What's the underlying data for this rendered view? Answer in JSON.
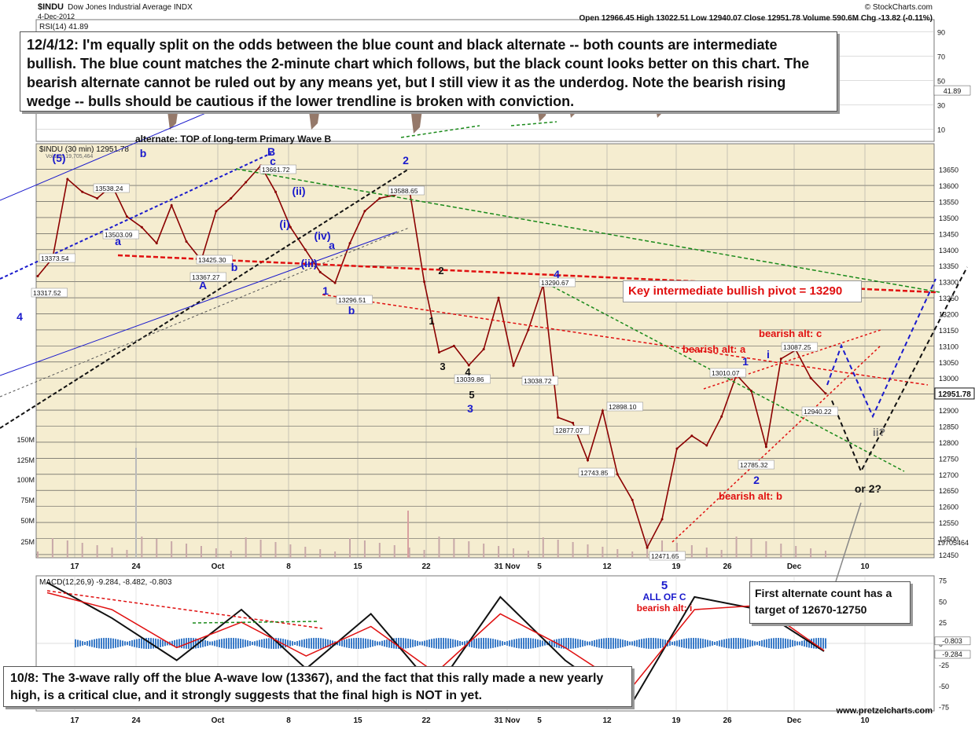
{
  "header": {
    "symbol": "$INDU",
    "name": "Dow Jones Industrial Average INDX",
    "date": "4-Dec-2012",
    "quote": "Open 12966.45  High 13022.51  Low 12940.07  Close 12951.78  Volume 590.6M  Chg -13.82 (-0.11%)",
    "copyright": "© StockCharts.com"
  },
  "notes": {
    "main": "12/4/12: I'm equally split on the odds between the blue count and black alternate -- both counts are intermediate bullish.  The blue count matches the 2-minute chart which follows, but the black count looks better on this chart.  The bearish alternate cannot be ruled out by any means yet, but I still view it as the underdog.  Note the bearish rising wedge -- bulls should be cautious if the lower trendline is broken with conviction.",
    "bottom": "10/8:  The 3-wave rally off the blue A-wave low (13367), and the fact that this rally made a new yearly high, is a critical clue, and it strongly suggests that the final high is NOT in yet.",
    "target": "First alternate count has a target of 12670-12750",
    "pivot": "Key intermediate bullish pivot = 13290"
  },
  "footer": {
    "url": "www.pretzelcharts.com"
  },
  "colors": {
    "blue": "#1a1acc",
    "red": "#e01010",
    "green": "#1a8a1a",
    "black": "#111111",
    "pricebar": "#8b0000",
    "macd_hist": "#3a7bc8",
    "ppo_fill": "#8a6a5a",
    "bg_band": "#f5edd0"
  },
  "chart_data": [
    {
      "type": "line",
      "name": "price",
      "title": "$INDU (30 min) 12951.78",
      "legend": [
        "$INDU (30 min) 12951.78",
        "Volume 19,705,464"
      ],
      "x_labels": [
        "17",
        "24",
        "Oct",
        "8",
        "15",
        "22",
        "31 Nov",
        "5",
        "12",
        "19",
        "26",
        "Dec",
        "10"
      ],
      "ylim": [
        12440,
        13730
      ],
      "y_ticks": [
        12450,
        12500,
        12550,
        12600,
        12650,
        12700,
        12750,
        12800,
        12850,
        12900,
        12950,
        13000,
        13050,
        13100,
        13150,
        13200,
        13250,
        13300,
        13350,
        13400,
        13450,
        13500,
        13550,
        13600,
        13650
      ],
      "last_value": "12951.78",
      "last_volume": "19705464",
      "volume_axis": [
        "150M",
        "125M",
        "100M",
        "75M",
        "50M",
        "25M"
      ],
      "series": [
        {
          "name": "$INDU",
          "x": [
            "Sep 13",
            "Sep 14",
            "Sep 17",
            "Sep 18",
            "Sep 19",
            "Sep 21",
            "Sep 24",
            "Sep 25",
            "Sep 26",
            "Sep 27",
            "Sep 28",
            "Oct 1",
            "Oct 2",
            "Oct 3",
            "Oct 4",
            "Oct 5",
            "Oct 8",
            "Oct 9",
            "Oct 10",
            "Oct 11",
            "Oct 12",
            "Oct 15",
            "Oct 16",
            "Oct 17",
            "Oct 18",
            "Oct 19",
            "Oct 22",
            "Oct 23",
            "Oct 24",
            "Oct 25",
            "Oct 26",
            "Nov 1",
            "Nov 2",
            "Nov 5",
            "Nov 6",
            "Nov 7",
            "Nov 8",
            "Nov 9",
            "Nov 12",
            "Nov 13",
            "Nov 14",
            "Nov 15",
            "Nov 16",
            "Nov 19",
            "Nov 20",
            "Nov 21",
            "Nov 23",
            "Nov 26",
            "Nov 27",
            "Nov 28",
            "Nov 29",
            "Nov 30",
            "Dec 3",
            "Dec 4"
          ],
          "values": [
            13317.52,
            13373.54,
            13620,
            13580,
            13560,
            13600,
            13503.09,
            13470,
            13420,
            13538.24,
            13425.3,
            13367.27,
            13520,
            13560,
            13610,
            13661.72,
            13580,
            13470,
            13400,
            13330,
            13296.51,
            13420,
            13520,
            13560,
            13570,
            13588.65,
            13300,
            13080,
            13100,
            13039.86,
            13090,
            13250,
            13038.72,
            13150,
            13290.67,
            12877.07,
            12860,
            12743.85,
            12898.1,
            12700,
            12620,
            12471.65,
            12560,
            12780,
            12820,
            12790,
            12880,
            13010.07,
            12960,
            12785.32,
            13060,
            13087.25,
            13000,
            12951.78
          ]
        }
      ],
      "price_labels": [
        "13373.54",
        "13317.52",
        "13503.09",
        "13538.24",
        "13425.30",
        "13367.27",
        "13661.72",
        "13296.51",
        "13588.65",
        "13039.86",
        "13038.72",
        "13290.67",
        "12877.07",
        "12743.85",
        "12898.10",
        "12471.65",
        "13010.07",
        "12785.32",
        "13087.25",
        "12940.22"
      ],
      "wave_labels": {
        "blue": [
          "(5)",
          "a",
          "A",
          "B",
          "c",
          "(ii)",
          "(i)",
          "(iv)",
          "a",
          "(iii)",
          "1",
          "b",
          "2",
          "b",
          "4",
          "3",
          "4",
          "5",
          "1",
          "i",
          "2",
          "ii?",
          "ALL OF C"
        ],
        "black": [
          "2",
          "1",
          "4",
          "3",
          "5",
          "or 2?"
        ],
        "red": [
          "bearish alt: a",
          "bearish alt: c",
          "bearish alt: b",
          "bearish alt: i"
        ],
        "annotation": "alternate: TOP of long-term Primary Wave B"
      }
    },
    {
      "type": "line",
      "name": "RSI",
      "legend": "RSI(14) 41.89",
      "ylim": [
        0,
        100
      ],
      "y_ticks": [
        10,
        30,
        50,
        70,
        90
      ],
      "last_value": "41.89"
    },
    {
      "type": "line",
      "name": "MACD",
      "legend": "MACD(12,26,9) -9.284, -8.482, -0.803",
      "ylim": [
        -80,
        80
      ],
      "y_ticks": [
        75,
        50,
        25,
        0,
        -25,
        -50,
        -75
      ],
      "last_values": [
        "-0.803",
        "-9.284"
      ],
      "x": [
        "Sep 13",
        "Sep 21",
        "Sep 28",
        "Oct 5",
        "Oct 12",
        "Oct 19",
        "Oct 26",
        "Nov 5",
        "Nov 9",
        "Nov 16",
        "Nov 23",
        "Nov 30",
        "Dec 4"
      ],
      "series": [
        {
          "name": "MACD",
          "values": [
            72,
            30,
            -20,
            40,
            -30,
            35,
            -55,
            55,
            -20,
            -75,
            55,
            40,
            -9.284
          ]
        },
        {
          "name": "Signal",
          "values": [
            60,
            40,
            -5,
            25,
            -15,
            20,
            -35,
            35,
            -5,
            -55,
            40,
            45,
            -8.482
          ]
        }
      ]
    }
  ]
}
